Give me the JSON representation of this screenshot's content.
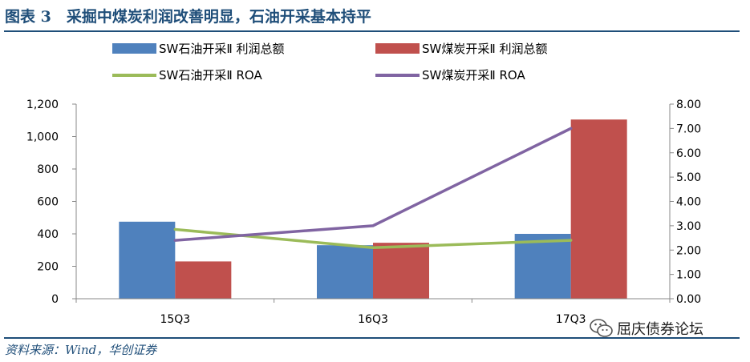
{
  "figure": {
    "title": "图表 3　采掘中煤炭利润改善明显，石油开采基本持平",
    "source": "资料来源：Wind，华创证券",
    "watermark": "屈庆债券论坛",
    "watermark_icon": "wechat-icon"
  },
  "colors": {
    "rule": "#1F4E79",
    "bar_oil": "#4F81BD",
    "bar_coal": "#C0504D",
    "line_oil": "#9BBB59",
    "line_coal": "#8064A2"
  },
  "chart_data": {
    "type": "bar",
    "categories": [
      "15Q3",
      "16Q3",
      "17Q3"
    ],
    "series": [
      {
        "name": "SW石油开采Ⅱ 利润总额",
        "kind": "bar",
        "axis": "left",
        "color": "#4F81BD",
        "values": [
          475,
          330,
          400
        ]
      },
      {
        "name": "SW煤炭开采Ⅱ 利润总额",
        "kind": "bar",
        "axis": "left",
        "color": "#C0504D",
        "values": [
          230,
          345,
          1105
        ]
      },
      {
        "name": "SW石油开采Ⅱ ROA",
        "kind": "line",
        "axis": "right",
        "color": "#9BBB59",
        "values": [
          2.85,
          2.1,
          2.4
        ]
      },
      {
        "name": "SW煤炭开采Ⅱ ROA",
        "kind": "line",
        "axis": "right",
        "color": "#8064A2",
        "values": [
          2.4,
          3.0,
          7.0
        ]
      }
    ],
    "ylim_left": [
      0,
      1200
    ],
    "yticks_left": [
      "0",
      "200",
      "400",
      "600",
      "800",
      "1,000",
      "1,200"
    ],
    "ylim_right": [
      0,
      8
    ],
    "yticks_right": [
      "0.00",
      "1.00",
      "2.00",
      "3.00",
      "4.00",
      "5.00",
      "6.00",
      "7.00",
      "8.00"
    ],
    "legend_position": "top",
    "grid": false
  }
}
